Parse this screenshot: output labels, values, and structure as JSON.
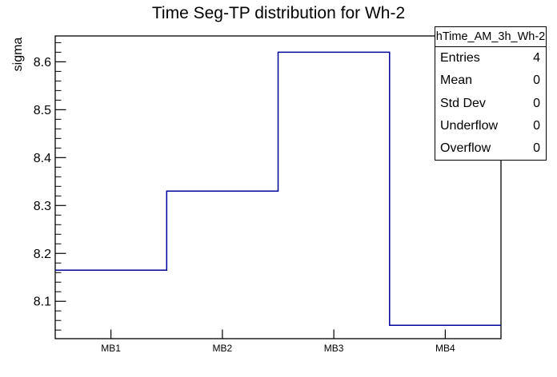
{
  "title": "Time Seg-TP distribution for Wh-2",
  "stats_box": {
    "header": "hTime_AM_3h_Wh-2",
    "rows": [
      {
        "label": "Entries",
        "value": "4"
      },
      {
        "label": "Mean",
        "value": "0"
      },
      {
        "label": "Std Dev",
        "value": "0"
      },
      {
        "label": "Underflow",
        "value": "0"
      },
      {
        "label": "Overflow",
        "value": "0"
      }
    ]
  },
  "chart_data": {
    "type": "bar",
    "style": "step-histogram-outline",
    "title": "Time Seg-TP distribution for Wh-2",
    "categories": [
      "MB1",
      "MB2",
      "MB3",
      "MB4"
    ],
    "values": [
      8.165,
      8.33,
      8.62,
      8.05
    ],
    "xlabel": "",
    "ylabel": "sigma",
    "ylim": [
      8.022,
      8.654
    ],
    "y_major_ticks": [
      8.1,
      8.2,
      8.3,
      8.4,
      8.5,
      8.6
    ],
    "y_minor_step": 0.02,
    "grid": false,
    "legend_position": "stats-box-top-right",
    "line_color": "#000099",
    "axis_color": "#000000",
    "background_color": "#ffffff"
  }
}
